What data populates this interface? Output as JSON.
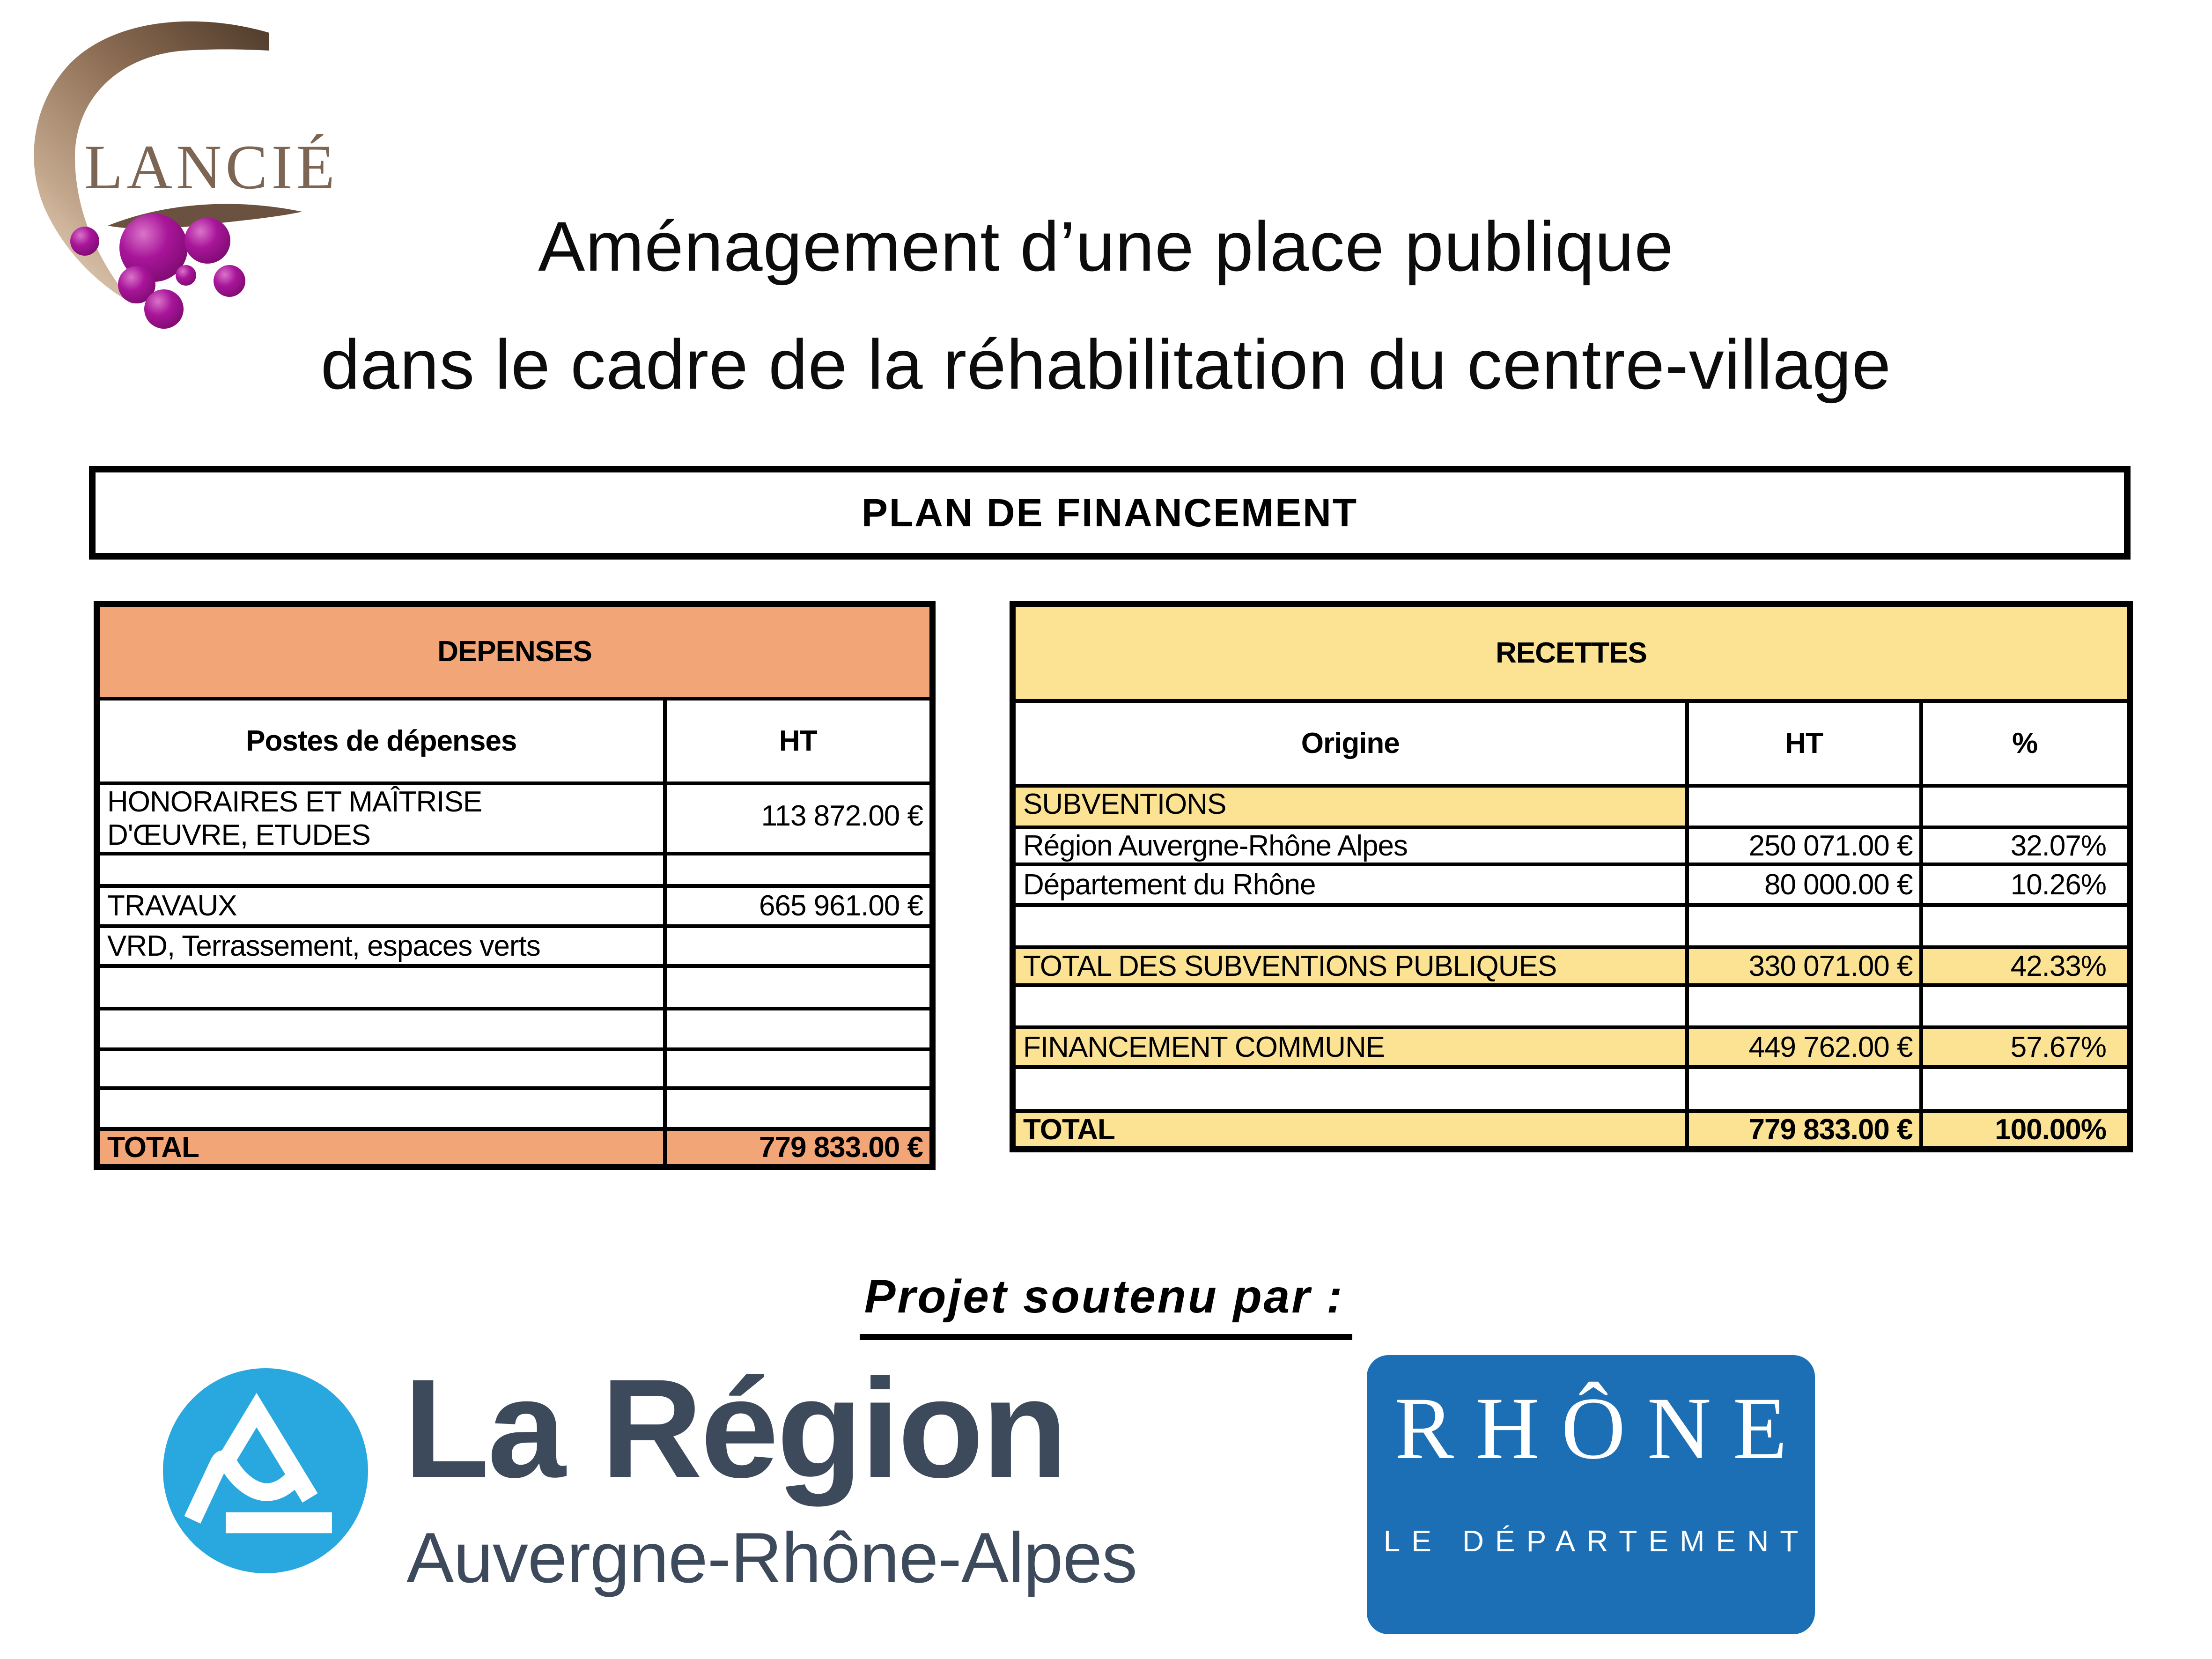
{
  "header": {
    "municipality_logo_text": "LANCIÉ",
    "title_line1": "Aménagement d’une place publique",
    "title_line2": "dans le cadre de la réhabilitation du centre-village"
  },
  "plan_box": {
    "label": "PLAN DE FINANCEMENT"
  },
  "depenses": {
    "title": "DEPENSES",
    "columns": [
      "Postes de dépenses",
      "HT"
    ],
    "rows": [
      {
        "label": "HONORAIRES ET MAÎTRISE\nD'ŒUVRE, ETUDES",
        "ht": "113 872.00 €",
        "value_bottom": true
      },
      {
        "label": "",
        "ht": ""
      },
      {
        "label": "TRAVAUX",
        "ht": "665 961.00 €"
      },
      {
        "label": "VRD, Terrassement, espaces verts",
        "ht": ""
      },
      {
        "label": "",
        "ht": ""
      },
      {
        "label": "",
        "ht": ""
      },
      {
        "label": "",
        "ht": ""
      },
      {
        "label": "",
        "ht": ""
      },
      {
        "label": "TOTAL",
        "ht": "779 833.00 €",
        "total": true,
        "row_highlight": true
      }
    ]
  },
  "recettes": {
    "title": "RECETTES",
    "columns": [
      "Origine",
      "HT",
      "%"
    ],
    "rows": [
      {
        "label": "SUBVENTIONS",
        "ht": "",
        "pct": "",
        "label_highlight": true,
        "label_bottom": true
      },
      {
        "label": "Région Auvergne-Rhône Alpes",
        "ht": "250 071.00 €",
        "pct": "32.07%"
      },
      {
        "label": "Département du Rhône",
        "ht": "80 000.00 €",
        "pct": "10.26%"
      },
      {
        "label": "",
        "ht": "",
        "pct": ""
      },
      {
        "label": "TOTAL DES SUBVENTIONS PUBLIQUES",
        "ht": "330 071.00 €",
        "pct": "42.33%",
        "row_highlight": true
      },
      {
        "label": "",
        "ht": "",
        "pct": ""
      },
      {
        "label": "FINANCEMENT COMMUNE",
        "ht": "449 762.00 €",
        "pct": "57.67%",
        "row_highlight": true
      },
      {
        "label": "",
        "ht": "",
        "pct": ""
      },
      {
        "label": "TOTAL",
        "ht": "779 833.00 €",
        "pct": "100.00%",
        "total": true,
        "row_highlight": true
      }
    ]
  },
  "footer": {
    "supported_by_label": "Projet soutenu par :",
    "region_logo": {
      "line1": "La Région",
      "line2": "Auvergne-Rhône-Alpes"
    },
    "rhone_logo": {
      "line1": "RHÔNE",
      "line2": "LE DÉPARTEMENT"
    }
  },
  "colors": {
    "depenses_header": "#f2a677",
    "recettes_header": "#fce293",
    "region_circle_blue": "#29a8e0",
    "region_text": "#3d4a5c",
    "rhone_blue": "#1c6fb5",
    "lancie_brown": "#7d6553",
    "lancie_grape": "#a8159a",
    "table_border": "#000000"
  }
}
